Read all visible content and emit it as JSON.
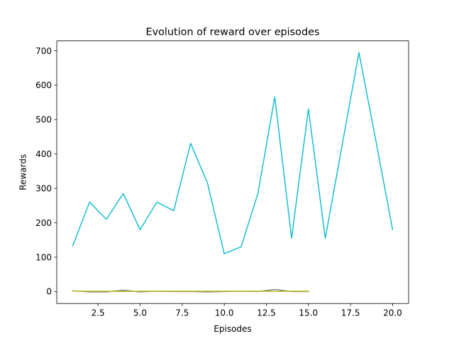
{
  "chart_data": {
    "type": "line",
    "title": "Evolution of reward over episodes",
    "xlabel": "Episodes",
    "ylabel": "Rewards",
    "xlim": [
      0.05,
      20.95
    ],
    "ylim": [
      -34.7,
      728.7
    ],
    "xticks": [
      2.5,
      5.0,
      7.5,
      10.0,
      12.5,
      15.0,
      17.5,
      20.0
    ],
    "xtick_labels": [
      "2.5",
      "5.0",
      "7.5",
      "10.0",
      "12.5",
      "15.0",
      "17.5",
      "20.0"
    ],
    "yticks": [
      0,
      100,
      200,
      300,
      400,
      500,
      600,
      700
    ],
    "ytick_labels": [
      "0",
      "100",
      "200",
      "300",
      "400",
      "500",
      "600",
      "700"
    ],
    "grid": false,
    "legend": false,
    "series": [
      {
        "color": "#7f7f7f",
        "x": [
          1,
          2,
          3,
          4,
          5,
          6,
          7,
          8,
          9,
          10,
          11,
          12,
          13,
          14,
          15
        ],
        "y": [
          2,
          -1,
          -1,
          4,
          -1,
          1,
          0,
          0,
          -1,
          0,
          1,
          0,
          6,
          0,
          0
        ]
      },
      {
        "color": "#bcbd22",
        "x": [
          1,
          2,
          3,
          4,
          5,
          6,
          7,
          8,
          9,
          10,
          11,
          12,
          13,
          14,
          15
        ],
        "y": [
          1,
          1,
          1,
          0,
          1,
          1,
          1,
          1,
          1,
          1,
          1,
          1,
          0,
          1,
          1
        ]
      },
      {
        "color": "#17becf",
        "x": [
          1,
          2,
          3,
          4,
          5,
          6,
          7,
          8,
          9,
          10,
          11,
          12,
          13,
          14,
          15,
          16,
          17,
          18,
          19,
          20
        ],
        "y": [
          133,
          260,
          210,
          285,
          180,
          260,
          235,
          431,
          316,
          110,
          130,
          285,
          566,
          155,
          531,
          155,
          425,
          695,
          440,
          180
        ]
      }
    ]
  }
}
